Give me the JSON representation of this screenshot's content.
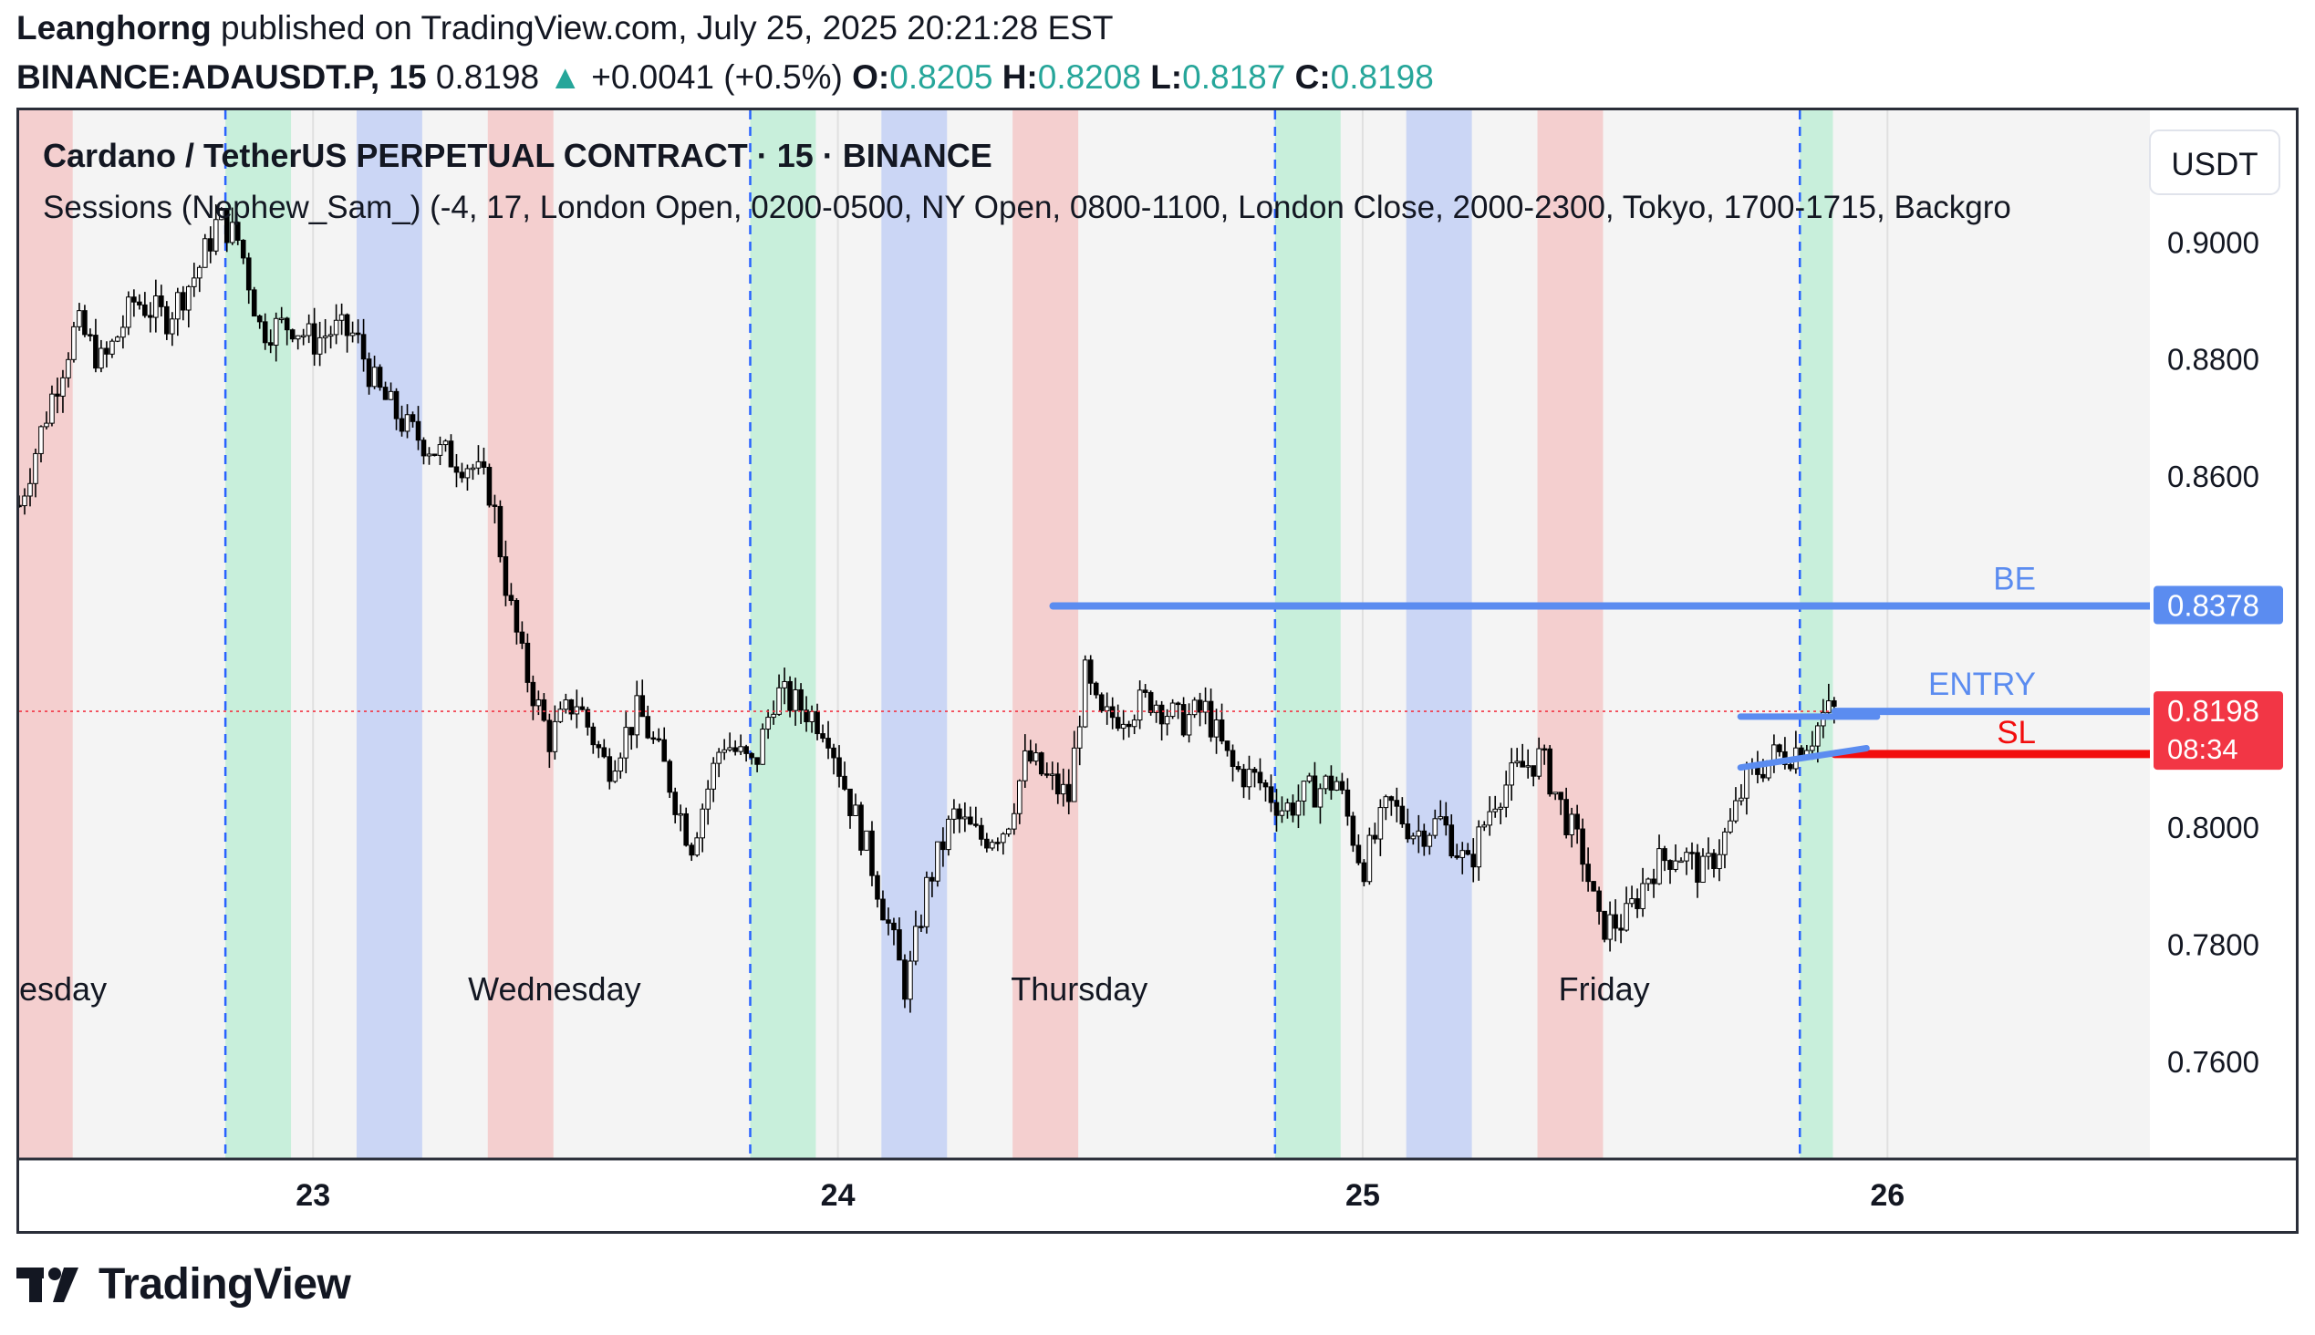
{
  "header": {
    "author": "Leanghorng",
    "published_text": "published on TradingView.com, July 25, 2025 20:21:28 EST",
    "symbol": "BINANCE:ADAUSDT.P, 15",
    "last": "0.8198",
    "arrow": "▲",
    "change": "+0.0041 (+0.5%)",
    "o_label": "O:",
    "o_value": "0.8205",
    "h_label": "H:",
    "h_value": "0.8208",
    "l_label": "L:",
    "l_value": "0.8187",
    "c_label": "C:",
    "c_value": "0.8198"
  },
  "legend": {
    "title": "Cardano / TetherUS PERPETUAL CONTRACT · 15 · BINANCE",
    "indicator": "Sessions (Nephew_Sam_) (-4, 17, London Open, 0200-0500, NY Open, 0800-1100, London Close, 2000-2300, Tokyo, 1700-1715, Backgro"
  },
  "price_scale": {
    "currency": "USDT"
  },
  "branding": {
    "name": "TradingView"
  },
  "colors": {
    "up": "#26a69a",
    "session_red": "#f4cfcf",
    "session_green": "#c8efdb",
    "session_blue": "#cbd6f5",
    "level_blue": "#5b8cf0",
    "stop_red": "#f20d0d",
    "price_label_red": "#f23645",
    "divider_blue": "#2962ff"
  },
  "chart_data": {
    "type": "candlestick",
    "title": "Cardano / TetherUS PERPETUAL CONTRACT · 15 · BINANCE",
    "interval": "15",
    "ylim": [
      0.7433,
      0.9225
    ],
    "y_ticks": [
      0.76,
      0.78,
      0.8,
      0.82,
      0.84,
      0.86,
      0.88,
      0.9
    ],
    "y_tick_labels": [
      "0.7600",
      "0.7800",
      "0.8000",
      "",
      "",
      "0.8600",
      "0.8800",
      "0.9000"
    ],
    "xlim": [
      22.44,
      26.5
    ],
    "x_ticks": [
      {
        "x": 23,
        "label": "23"
      },
      {
        "x": 24,
        "label": "24"
      },
      {
        "x": 25,
        "label": "25"
      },
      {
        "x": 26,
        "label": "26"
      }
    ],
    "day_labels": [
      {
        "x": 22.44,
        "label": "esday"
      },
      {
        "x": 23.46,
        "label": "Wednesday"
      },
      {
        "x": 24.46,
        "label": "Thursday"
      },
      {
        "x": 25.46,
        "label": "Friday"
      }
    ],
    "session_dividers": [
      22.833,
      23.833,
      24.833,
      25.833
    ],
    "sessions": [
      {
        "name": "London Close",
        "color": "red",
        "start": 22.417,
        "end": 22.542
      },
      {
        "name": "NY Open",
        "color": "green",
        "start": 22.833,
        "end": 22.958
      },
      {
        "name": "London Open",
        "color": "blue",
        "start": 23.083,
        "end": 23.208
      },
      {
        "name": "London Close",
        "color": "red",
        "start": 23.333,
        "end": 23.458
      },
      {
        "name": "NY Open",
        "color": "green",
        "start": 23.833,
        "end": 23.958
      },
      {
        "name": "London Open",
        "color": "blue",
        "start": 24.083,
        "end": 24.208
      },
      {
        "name": "London Close",
        "color": "red",
        "start": 24.333,
        "end": 24.458
      },
      {
        "name": "NY Open",
        "color": "green",
        "start": 24.833,
        "end": 24.958
      },
      {
        "name": "London Open",
        "color": "blue",
        "start": 25.083,
        "end": 25.208
      },
      {
        "name": "London Close",
        "color": "red",
        "start": 25.333,
        "end": 25.458
      },
      {
        "name": "NY Open",
        "color": "green",
        "start": 25.833,
        "end": 25.896
      }
    ],
    "price_path": [
      [
        22.44,
        0.855
      ],
      [
        22.5,
        0.873
      ],
      [
        22.55,
        0.886
      ],
      [
        22.6,
        0.879
      ],
      [
        22.66,
        0.89
      ],
      [
        22.72,
        0.887
      ],
      [
        22.78,
        0.895
      ],
      [
        22.82,
        0.904
      ],
      [
        22.86,
        0.9
      ],
      [
        22.9,
        0.885
      ],
      [
        22.96,
        0.886
      ],
      [
        23.0,
        0.883
      ],
      [
        23.04,
        0.885
      ],
      [
        23.08,
        0.884
      ],
      [
        23.12,
        0.875
      ],
      [
        23.18,
        0.868
      ],
      [
        23.24,
        0.864
      ],
      [
        23.3,
        0.862
      ],
      [
        23.34,
        0.857
      ],
      [
        23.37,
        0.84
      ],
      [
        23.4,
        0.828
      ],
      [
        23.45,
        0.815
      ],
      [
        23.5,
        0.822
      ],
      [
        23.56,
        0.81
      ],
      [
        23.62,
        0.82
      ],
      [
        23.67,
        0.81
      ],
      [
        23.72,
        0.797
      ],
      [
        23.78,
        0.815
      ],
      [
        23.84,
        0.81
      ],
      [
        23.88,
        0.823
      ],
      [
        23.94,
        0.82
      ],
      [
        23.98,
        0.817
      ],
      [
        24.02,
        0.805
      ],
      [
        24.06,
        0.795
      ],
      [
        24.1,
        0.782
      ],
      [
        24.13,
        0.772
      ],
      [
        24.17,
        0.79
      ],
      [
        24.22,
        0.802
      ],
      [
        24.27,
        0.798
      ],
      [
        24.32,
        0.8
      ],
      [
        24.36,
        0.812
      ],
      [
        24.4,
        0.808
      ],
      [
        24.44,
        0.805
      ],
      [
        24.47,
        0.826
      ],
      [
        24.5,
        0.818
      ],
      [
        24.55,
        0.82
      ],
      [
        24.6,
        0.822
      ],
      [
        24.65,
        0.818
      ],
      [
        24.7,
        0.82
      ],
      [
        24.75,
        0.81
      ],
      [
        24.8,
        0.808
      ],
      [
        24.85,
        0.803
      ],
      [
        24.9,
        0.806
      ],
      [
        24.95,
        0.808
      ],
      [
        25.0,
        0.793
      ],
      [
        25.05,
        0.804
      ],
      [
        25.1,
        0.799
      ],
      [
        25.15,
        0.801
      ],
      [
        25.2,
        0.793
      ],
      [
        25.25,
        0.805
      ],
      [
        25.3,
        0.81
      ],
      [
        25.34,
        0.812
      ],
      [
        25.38,
        0.803
      ],
      [
        25.42,
        0.795
      ],
      [
        25.45,
        0.783
      ],
      [
        25.5,
        0.784
      ],
      [
        25.55,
        0.793
      ],
      [
        25.6,
        0.796
      ],
      [
        25.65,
        0.792
      ],
      [
        25.7,
        0.8
      ],
      [
        25.73,
        0.808
      ],
      [
        25.78,
        0.812
      ],
      [
        25.82,
        0.813
      ],
      [
        25.86,
        0.816
      ],
      [
        25.88,
        0.8195
      ],
      [
        25.9,
        0.8198
      ]
    ],
    "levels": [
      {
        "name": "BE",
        "label": "BE",
        "price": 0.8378,
        "x_start": 24.41,
        "axis_label": "0.8378"
      },
      {
        "name": "ENTRY",
        "label": "ENTRY",
        "price": 0.8198,
        "x_start": 25.9,
        "axis_label": "0.8198",
        "countdown": "08:34"
      },
      {
        "name": "SL",
        "label": "SL",
        "price": 0.8125,
        "x_start": 25.9
      }
    ],
    "current_price": 0.8198,
    "annotations": [
      {
        "type": "short_segment",
        "x1": 25.72,
        "x2": 25.98,
        "y1": 0.8189,
        "y2": 0.8189
      },
      {
        "type": "trend_segment",
        "x1": 25.72,
        "x2": 25.96,
        "y1": 0.8102,
        "y2": 0.8135
      }
    ]
  }
}
